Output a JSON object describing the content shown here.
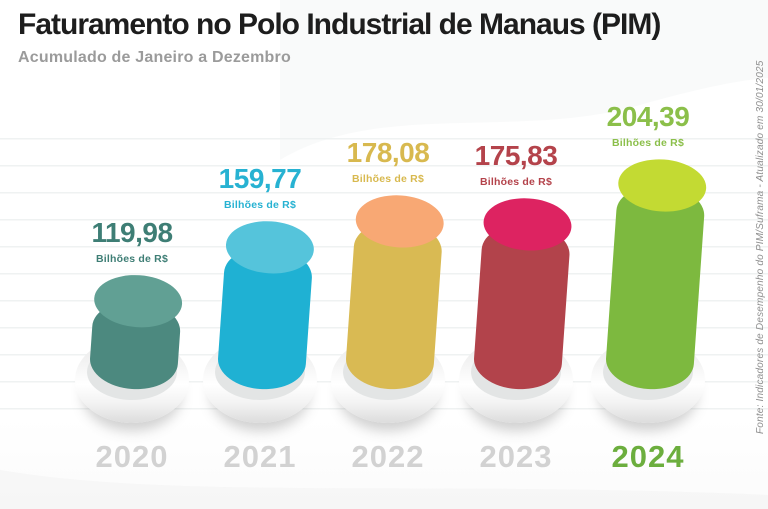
{
  "header": {
    "title": "Faturamento no Polo Industrial de Manaus (PIM)",
    "subtitle": "Acumulado de Janeiro a Dezembro"
  },
  "source_note": "Fonte: Indicadores de Desempenho do PIM/Suframa - Atualizado em 30/01/2025",
  "chart_data": {
    "type": "bar",
    "title": "Faturamento no Polo Industrial de Manaus (PIM)",
    "subtitle": "Acumulado de Janeiro a Dezembro",
    "unit": "Bilhões de R$",
    "categories": [
      "2020",
      "2021",
      "2022",
      "2023",
      "2024"
    ],
    "values": [
      119.98,
      159.77,
      178.08,
      175.83,
      204.39
    ],
    "highlight_category": "2024",
    "legend": "none",
    "grid": "horizontal-faint",
    "bars": [
      {
        "year": "2020",
        "value": 119.98,
        "value_label": "119,98",
        "unit_label": "Bilhões de R$",
        "text_color": "#3e7e75",
        "body_color": "#4c897f",
        "cap_color": "#61a094",
        "highlight": false
      },
      {
        "year": "2021",
        "value": 159.77,
        "value_label": "159,77",
        "unit_label": "Bilhões de R$",
        "text_color": "#27b2d2",
        "body_color": "#1fb1d3",
        "cap_color": "#55c4db",
        "highlight": false
      },
      {
        "year": "2022",
        "value": 178.08,
        "value_label": "178,08",
        "unit_label": "Bilhões de R$",
        "text_color": "#d8b94f",
        "body_color": "#d9ba53",
        "cap_color": "#f8a874",
        "highlight": false
      },
      {
        "year": "2023",
        "value": 175.83,
        "value_label": "175,83",
        "unit_label": "Bilhões de R$",
        "text_color": "#b4434b",
        "body_color": "#b2434b",
        "cap_color": "#dd2361",
        "highlight": false
      },
      {
        "year": "2024",
        "value": 204.39,
        "value_label": "204,39",
        "unit_label": "Bilhões de R$",
        "text_color": "#8bbf4a",
        "body_color": "#7db93f",
        "cap_color": "#c3da33",
        "highlight": true
      }
    ],
    "colors": {
      "year_default": "#d2d2d2",
      "year_highlight": "#6cae3e",
      "gridline": "#edf0f0",
      "title": "#1d1d1d",
      "subtitle": "#9b9b9b",
      "source_note": "#8f8f8f"
    }
  }
}
